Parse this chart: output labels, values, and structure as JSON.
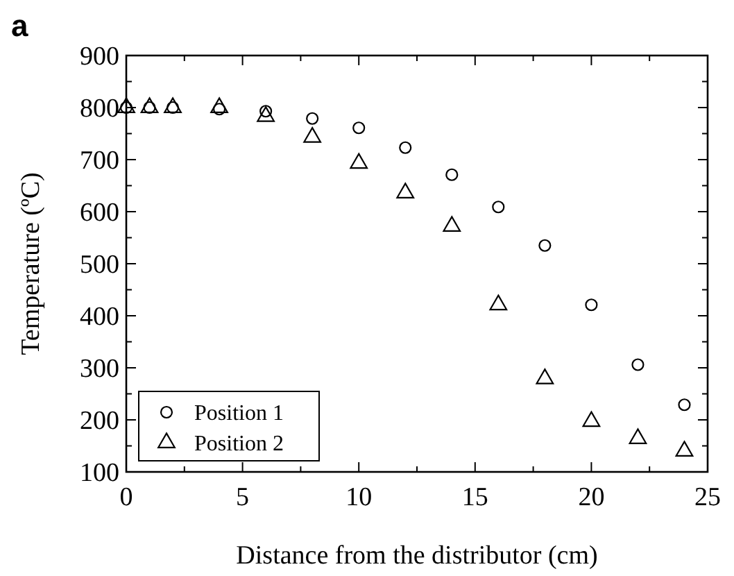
{
  "chart_data": {
    "type": "scatter",
    "title": "a",
    "xlabel": "Distance from the distributor (cm)",
    "ylabel": "Temperature (ºC)",
    "xlim": [
      0,
      25
    ],
    "ylim": [
      100,
      900
    ],
    "xticks": [
      0,
      {
        "value": 2.5,
        "label": null
      },
      5,
      {
        "value": 7.5,
        "label": null
      },
      10,
      {
        "value": 12.5,
        "label": null
      },
      15,
      {
        "value": 17.5,
        "label": null
      },
      20,
      {
        "value": 22.5,
        "label": null
      },
      25
    ],
    "yticks": [
      100,
      {
        "value": 150,
        "label": null
      },
      200,
      {
        "value": 250,
        "label": null
      },
      300,
      {
        "value": 350,
        "label": null
      },
      400,
      {
        "value": 450,
        "label": null
      },
      500,
      {
        "value": 550,
        "label": null
      },
      600,
      {
        "value": 650,
        "label": null
      },
      700,
      {
        "value": 750,
        "label": null
      },
      800,
      {
        "value": 850,
        "label": null
      },
      900
    ],
    "legend": "bottom left",
    "grid": false,
    "x": [
      0,
      1,
      2,
      4,
      6,
      8,
      10,
      12,
      14,
      16,
      18,
      20,
      22,
      24
    ],
    "series": [
      {
        "name": "Position 1",
        "color": "#000000",
        "marker": "circle",
        "values": [
          800,
          800,
          800,
          797,
          793,
          779,
          761,
          723,
          671,
          609,
          535,
          421,
          306,
          229
        ]
      },
      {
        "name": "Position 2",
        "color": "#000000",
        "marker": "triangle",
        "values": [
          800,
          800,
          800,
          800,
          783,
          743,
          693,
          636,
          572,
          421,
          279,
          197,
          164,
          140
        ]
      }
    ]
  }
}
